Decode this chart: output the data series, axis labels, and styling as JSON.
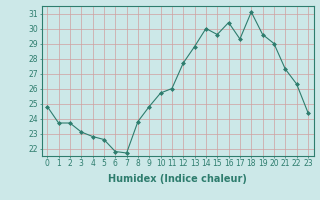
{
  "x": [
    0,
    1,
    2,
    3,
    4,
    5,
    6,
    7,
    8,
    9,
    10,
    11,
    12,
    13,
    14,
    15,
    16,
    17,
    18,
    19,
    20,
    21,
    22,
    23
  ],
  "y": [
    24.8,
    23.7,
    23.7,
    23.1,
    22.8,
    22.6,
    21.8,
    21.7,
    23.8,
    24.8,
    25.7,
    26.0,
    27.7,
    28.8,
    30.0,
    29.6,
    30.4,
    29.3,
    31.1,
    29.6,
    29.0,
    27.3,
    26.3,
    24.4
  ],
  "line_color": "#2e7d6e",
  "marker": "D",
  "marker_size": 2,
  "bg_color": "#cce8e8",
  "grid_color": "#b0d0d0",
  "xlabel": "Humidex (Indice chaleur)",
  "xlim": [
    -0.5,
    23.5
  ],
  "ylim": [
    21.5,
    31.5
  ],
  "yticks": [
    22,
    23,
    24,
    25,
    26,
    27,
    28,
    29,
    30,
    31
  ],
  "xticks": [
    0,
    1,
    2,
    3,
    4,
    5,
    6,
    7,
    8,
    9,
    10,
    11,
    12,
    13,
    14,
    15,
    16,
    17,
    18,
    19,
    20,
    21,
    22,
    23
  ],
  "tick_label_fontsize": 5.5,
  "xlabel_fontsize": 7,
  "xlabel_fontweight": "bold"
}
